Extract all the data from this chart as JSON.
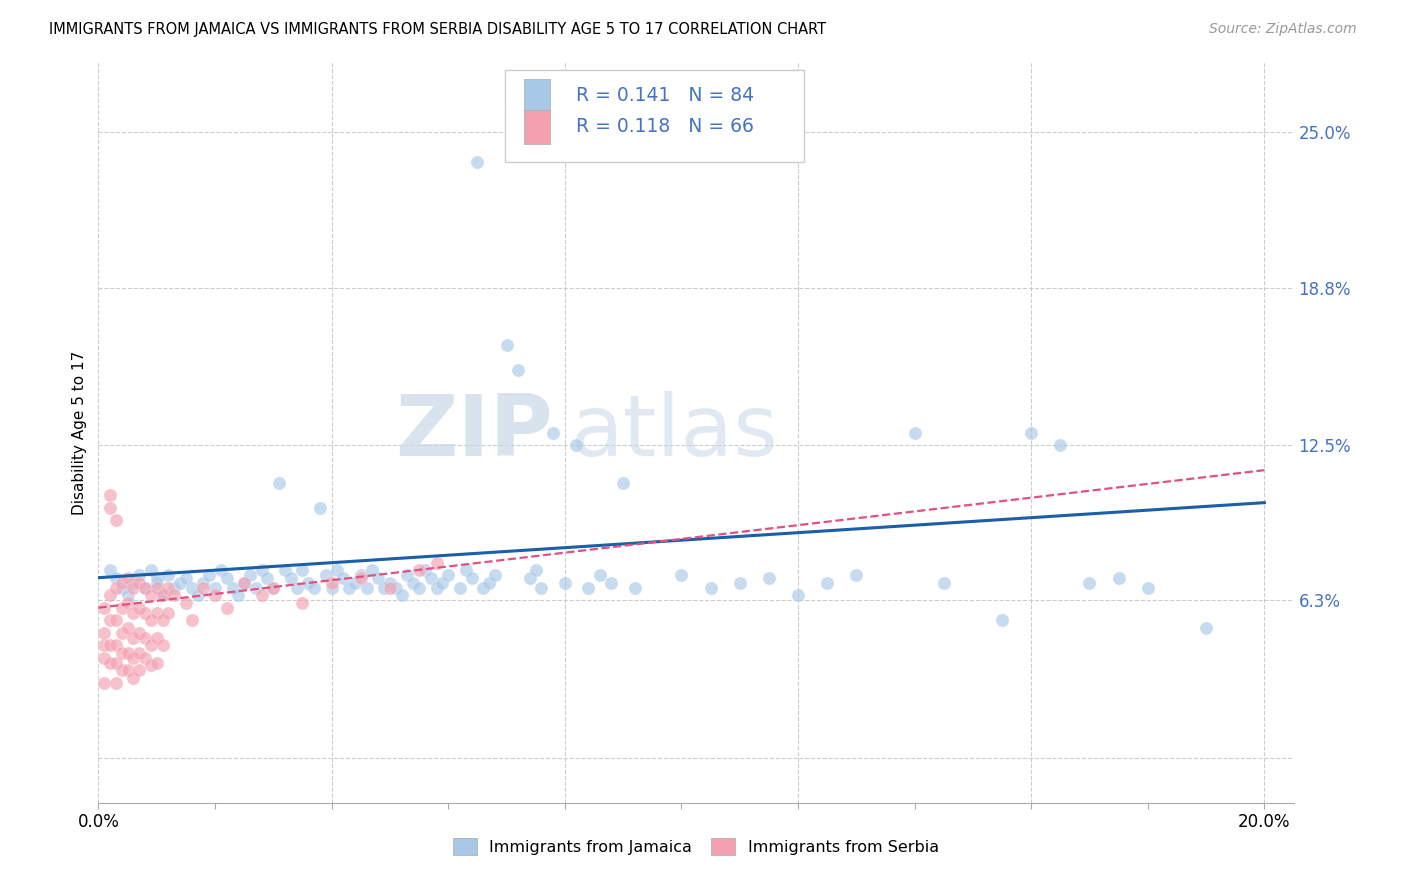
{
  "title": "IMMIGRANTS FROM JAMAICA VS IMMIGRANTS FROM SERBIA DISABILITY AGE 5 TO 17 CORRELATION CHART",
  "source": "Source: ZipAtlas.com",
  "ylabel": "Disability Age 5 to 17",
  "xlim": [
    0.0,
    0.205
  ],
  "ylim": [
    -0.018,
    0.278
  ],
  "color_jamaica": "#a8c8e8",
  "color_serbia": "#f4a0b0",
  "color_jamaica_line": "#1a5fa8",
  "color_serbia_line": "#e05080",
  "color_text_blue": "#4472c4",
  "legend_label_jamaica": "Immigrants from Jamaica",
  "legend_label_serbia": "Immigrants from Serbia",
  "r_jamaica": 0.141,
  "n_jamaica": 84,
  "r_serbia": 0.118,
  "n_serbia": 66,
  "watermark_zip": "ZIP",
  "watermark_atlas": "atlas",
  "ytick_vals": [
    0.0,
    0.063,
    0.125,
    0.188,
    0.25
  ],
  "ytick_labels": [
    "",
    "6.3%",
    "12.5%",
    "18.8%",
    "25.0%"
  ],
  "grid_color": "#cccccc",
  "bg_color": "#ffffff",
  "jam_line_x0": 0.0,
  "jam_line_y0": 0.072,
  "jam_line_x1": 0.2,
  "jam_line_y1": 0.102,
  "ser_line_x0": 0.0,
  "ser_line_y0": 0.06,
  "ser_line_x1": 0.2,
  "ser_line_y1": 0.115
}
